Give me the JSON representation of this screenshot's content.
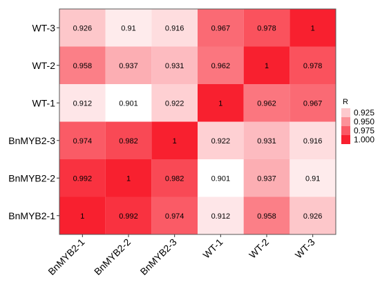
{
  "chart_data": {
    "type": "heatmap",
    "title": "",
    "xlabel": "",
    "ylabel": "",
    "x_categories": [
      "BnMYB2-1",
      "BnMYB2-2",
      "BnMYB2-3",
      "WT-1",
      "WT-2",
      "WT-3"
    ],
    "y_categories": [
      "BnMYB2-1",
      "BnMYB2-2",
      "BnMYB2-3",
      "WT-1",
      "WT-2",
      "WT-3"
    ],
    "values": [
      [
        1,
        0.992,
        0.974,
        0.912,
        0.958,
        0.926
      ],
      [
        0.992,
        1,
        0.982,
        0.901,
        0.937,
        0.91
      ],
      [
        0.974,
        0.982,
        1,
        0.922,
        0.931,
        0.916
      ],
      [
        0.912,
        0.901,
        0.922,
        1,
        0.962,
        0.967
      ],
      [
        0.958,
        0.937,
        0.931,
        0.962,
        1,
        0.978
      ],
      [
        0.926,
        0.91,
        0.916,
        0.967,
        0.978,
        1
      ]
    ],
    "labels": [
      [
        "1",
        "0.992",
        "0.974",
        "0.912",
        "0.958",
        "0.926"
      ],
      [
        "0.992",
        "1",
        "0.982",
        "0.901",
        "0.937",
        "0.91"
      ],
      [
        "0.974",
        "0.982",
        "1",
        "0.922",
        "0.931",
        "0.916"
      ],
      [
        "0.912",
        "0.901",
        "0.922",
        "1",
        "0.962",
        "0.967"
      ],
      [
        "0.958",
        "0.937",
        "0.931",
        "0.962",
        "1",
        "0.978"
      ],
      [
        "0.926",
        "0.91",
        "0.916",
        "0.967",
        "0.978",
        "1"
      ]
    ],
    "color_scale": {
      "min": 0.901,
      "max": 1.0,
      "low_color": "#ffffff",
      "high_color": "#f8202f"
    },
    "legend": {
      "title": "R",
      "position": "right",
      "entries": [
        {
          "label": "0.925",
          "value": 0.925
        },
        {
          "label": "0.950",
          "value": 0.95
        },
        {
          "label": "0.975",
          "value": 0.975
        },
        {
          "label": "1.000",
          "value": 1.0
        }
      ]
    },
    "grid": false
  }
}
